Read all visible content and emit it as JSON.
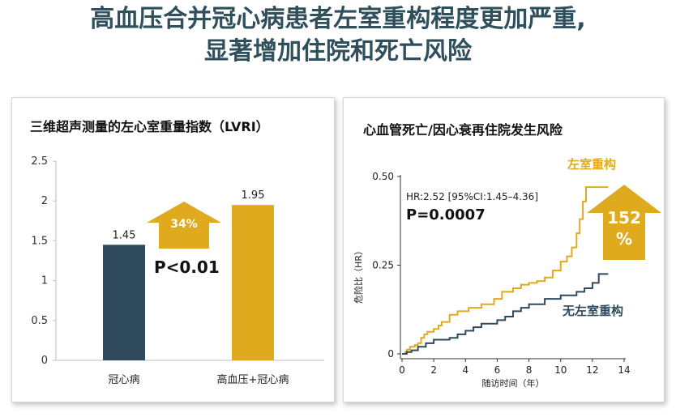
{
  "headline": {
    "line1": "高血压合并冠心病患者左室重构程度更加严重,",
    "line2": "显著增加住院和死亡风险"
  },
  "colors": {
    "navy": "#2e4a5c",
    "gold": "#e0aa1f",
    "title": "#2f4f5c"
  },
  "chart_data": [
    {
      "type": "bar",
      "title": "三维超声测量的左心室重量指数（LVRI）",
      "categories": [
        "冠心病",
        "高血压+冠心病"
      ],
      "values": [
        1.45,
        1.95
      ],
      "value_labels": [
        "1.45",
        "1.95"
      ],
      "series_colors": [
        "#2e4a5c",
        "#e0aa1f"
      ],
      "ylim": [
        0,
        2.5
      ],
      "yticks": [
        "0",
        "0.5",
        "1",
        "1.5",
        "2",
        "2.5"
      ],
      "grid": false,
      "annotations": {
        "increase": "34%",
        "pvalue": "P<0.01"
      }
    },
    {
      "type": "line",
      "title": "心血管死亡/因心衰再住院发生风险",
      "xlabel": "随访时间（年）",
      "ylabel": "危险比（HR）",
      "xlim": [
        0,
        14
      ],
      "ylim": [
        0,
        0.5
      ],
      "xticks": [
        "0",
        "2",
        "4",
        "6",
        "8",
        "10",
        "12",
        "14"
      ],
      "yticks": [
        "0",
        "0.25",
        "0.50"
      ],
      "grid": false,
      "annotations": {
        "hr": "HR:2.52 [95%CI:1.45–4.36]",
        "pvalue": "P=0.0007",
        "increase": "152 %"
      },
      "series": [
        {
          "name": "左室重构",
          "color": "#e0aa1f",
          "points": [
            [
              0,
              0
            ],
            [
              0.2,
              0.005
            ],
            [
              0.3,
              0.012
            ],
            [
              0.5,
              0.02
            ],
            [
              0.8,
              0.025
            ],
            [
              1,
              0.03
            ],
            [
              1.2,
              0.045
            ],
            [
              1.4,
              0.055
            ],
            [
              1.6,
              0.062
            ],
            [
              2,
              0.07
            ],
            [
              2.3,
              0.08
            ],
            [
              2.5,
              0.09
            ],
            [
              3,
              0.11
            ],
            [
              3.5,
              0.12
            ],
            [
              4.2,
              0.13
            ],
            [
              5,
              0.14
            ],
            [
              5.8,
              0.155
            ],
            [
              6.3,
              0.175
            ],
            [
              7,
              0.185
            ],
            [
              7.5,
              0.195
            ],
            [
              8,
              0.2
            ],
            [
              8.5,
              0.205
            ],
            [
              9,
              0.215
            ],
            [
              9.5,
              0.235
            ],
            [
              10,
              0.26
            ],
            [
              10.4,
              0.275
            ],
            [
              10.7,
              0.3
            ],
            [
              11,
              0.34
            ],
            [
              11.2,
              0.38
            ],
            [
              11.4,
              0.43
            ],
            [
              11.6,
              0.47
            ],
            [
              12,
              0.47
            ],
            [
              13,
              0.47
            ]
          ]
        },
        {
          "name": "无左室重构",
          "color": "#2e4a5c",
          "points": [
            [
              0,
              0
            ],
            [
              0.3,
              0.005
            ],
            [
              0.6,
              0.01
            ],
            [
              1,
              0.02
            ],
            [
              1.5,
              0.03
            ],
            [
              2,
              0.04
            ],
            [
              3,
              0.045
            ],
            [
              3.5,
              0.055
            ],
            [
              4,
              0.065
            ],
            [
              4.5,
              0.075
            ],
            [
              5,
              0.085
            ],
            [
              6,
              0.095
            ],
            [
              6.5,
              0.105
            ],
            [
              7,
              0.12
            ],
            [
              7.5,
              0.13
            ],
            [
              8,
              0.14
            ],
            [
              9,
              0.155
            ],
            [
              10,
              0.165
            ],
            [
              11,
              0.175
            ],
            [
              11.5,
              0.185
            ],
            [
              12,
              0.2
            ],
            [
              12.4,
              0.225
            ],
            [
              13,
              0.225
            ]
          ]
        }
      ]
    }
  ]
}
